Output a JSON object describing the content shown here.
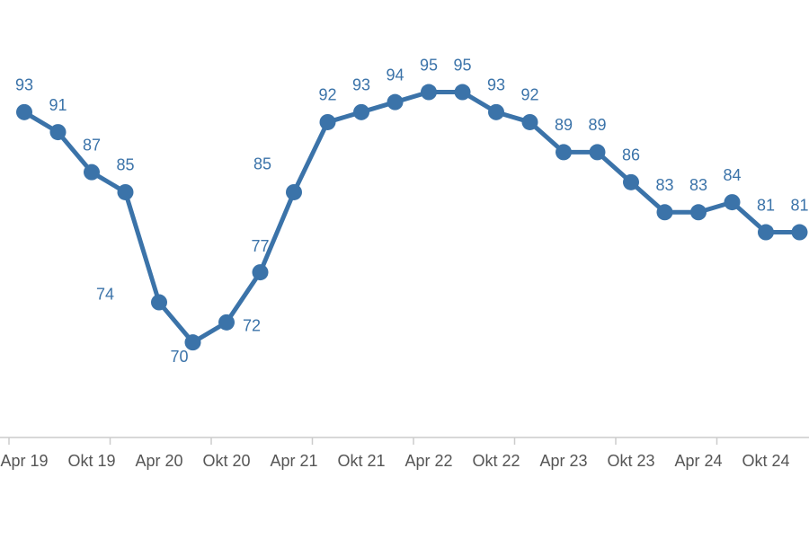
{
  "chart_data": {
    "type": "line",
    "categories": [
      "Apr 19",
      null,
      "Okt 19",
      null,
      "Apr 20",
      null,
      "Okt 20",
      null,
      "Apr 21",
      null,
      "Okt 21",
      null,
      "Apr 22",
      null,
      "Okt 22",
      null,
      "Apr 23",
      null,
      "Okt 23",
      null,
      "Apr 24",
      null,
      "Okt 24",
      null
    ],
    "series": [
      {
        "color": "#3b73a9",
        "values": [
          93,
          91,
          87,
          85,
          74,
          70,
          72,
          77,
          85,
          92,
          93,
          94,
          95,
          95,
          93,
          92,
          89,
          89,
          86,
          83,
          83,
          84,
          81,
          81
        ]
      }
    ],
    "ylim": [
      60.5,
      104.2
    ]
  }
}
